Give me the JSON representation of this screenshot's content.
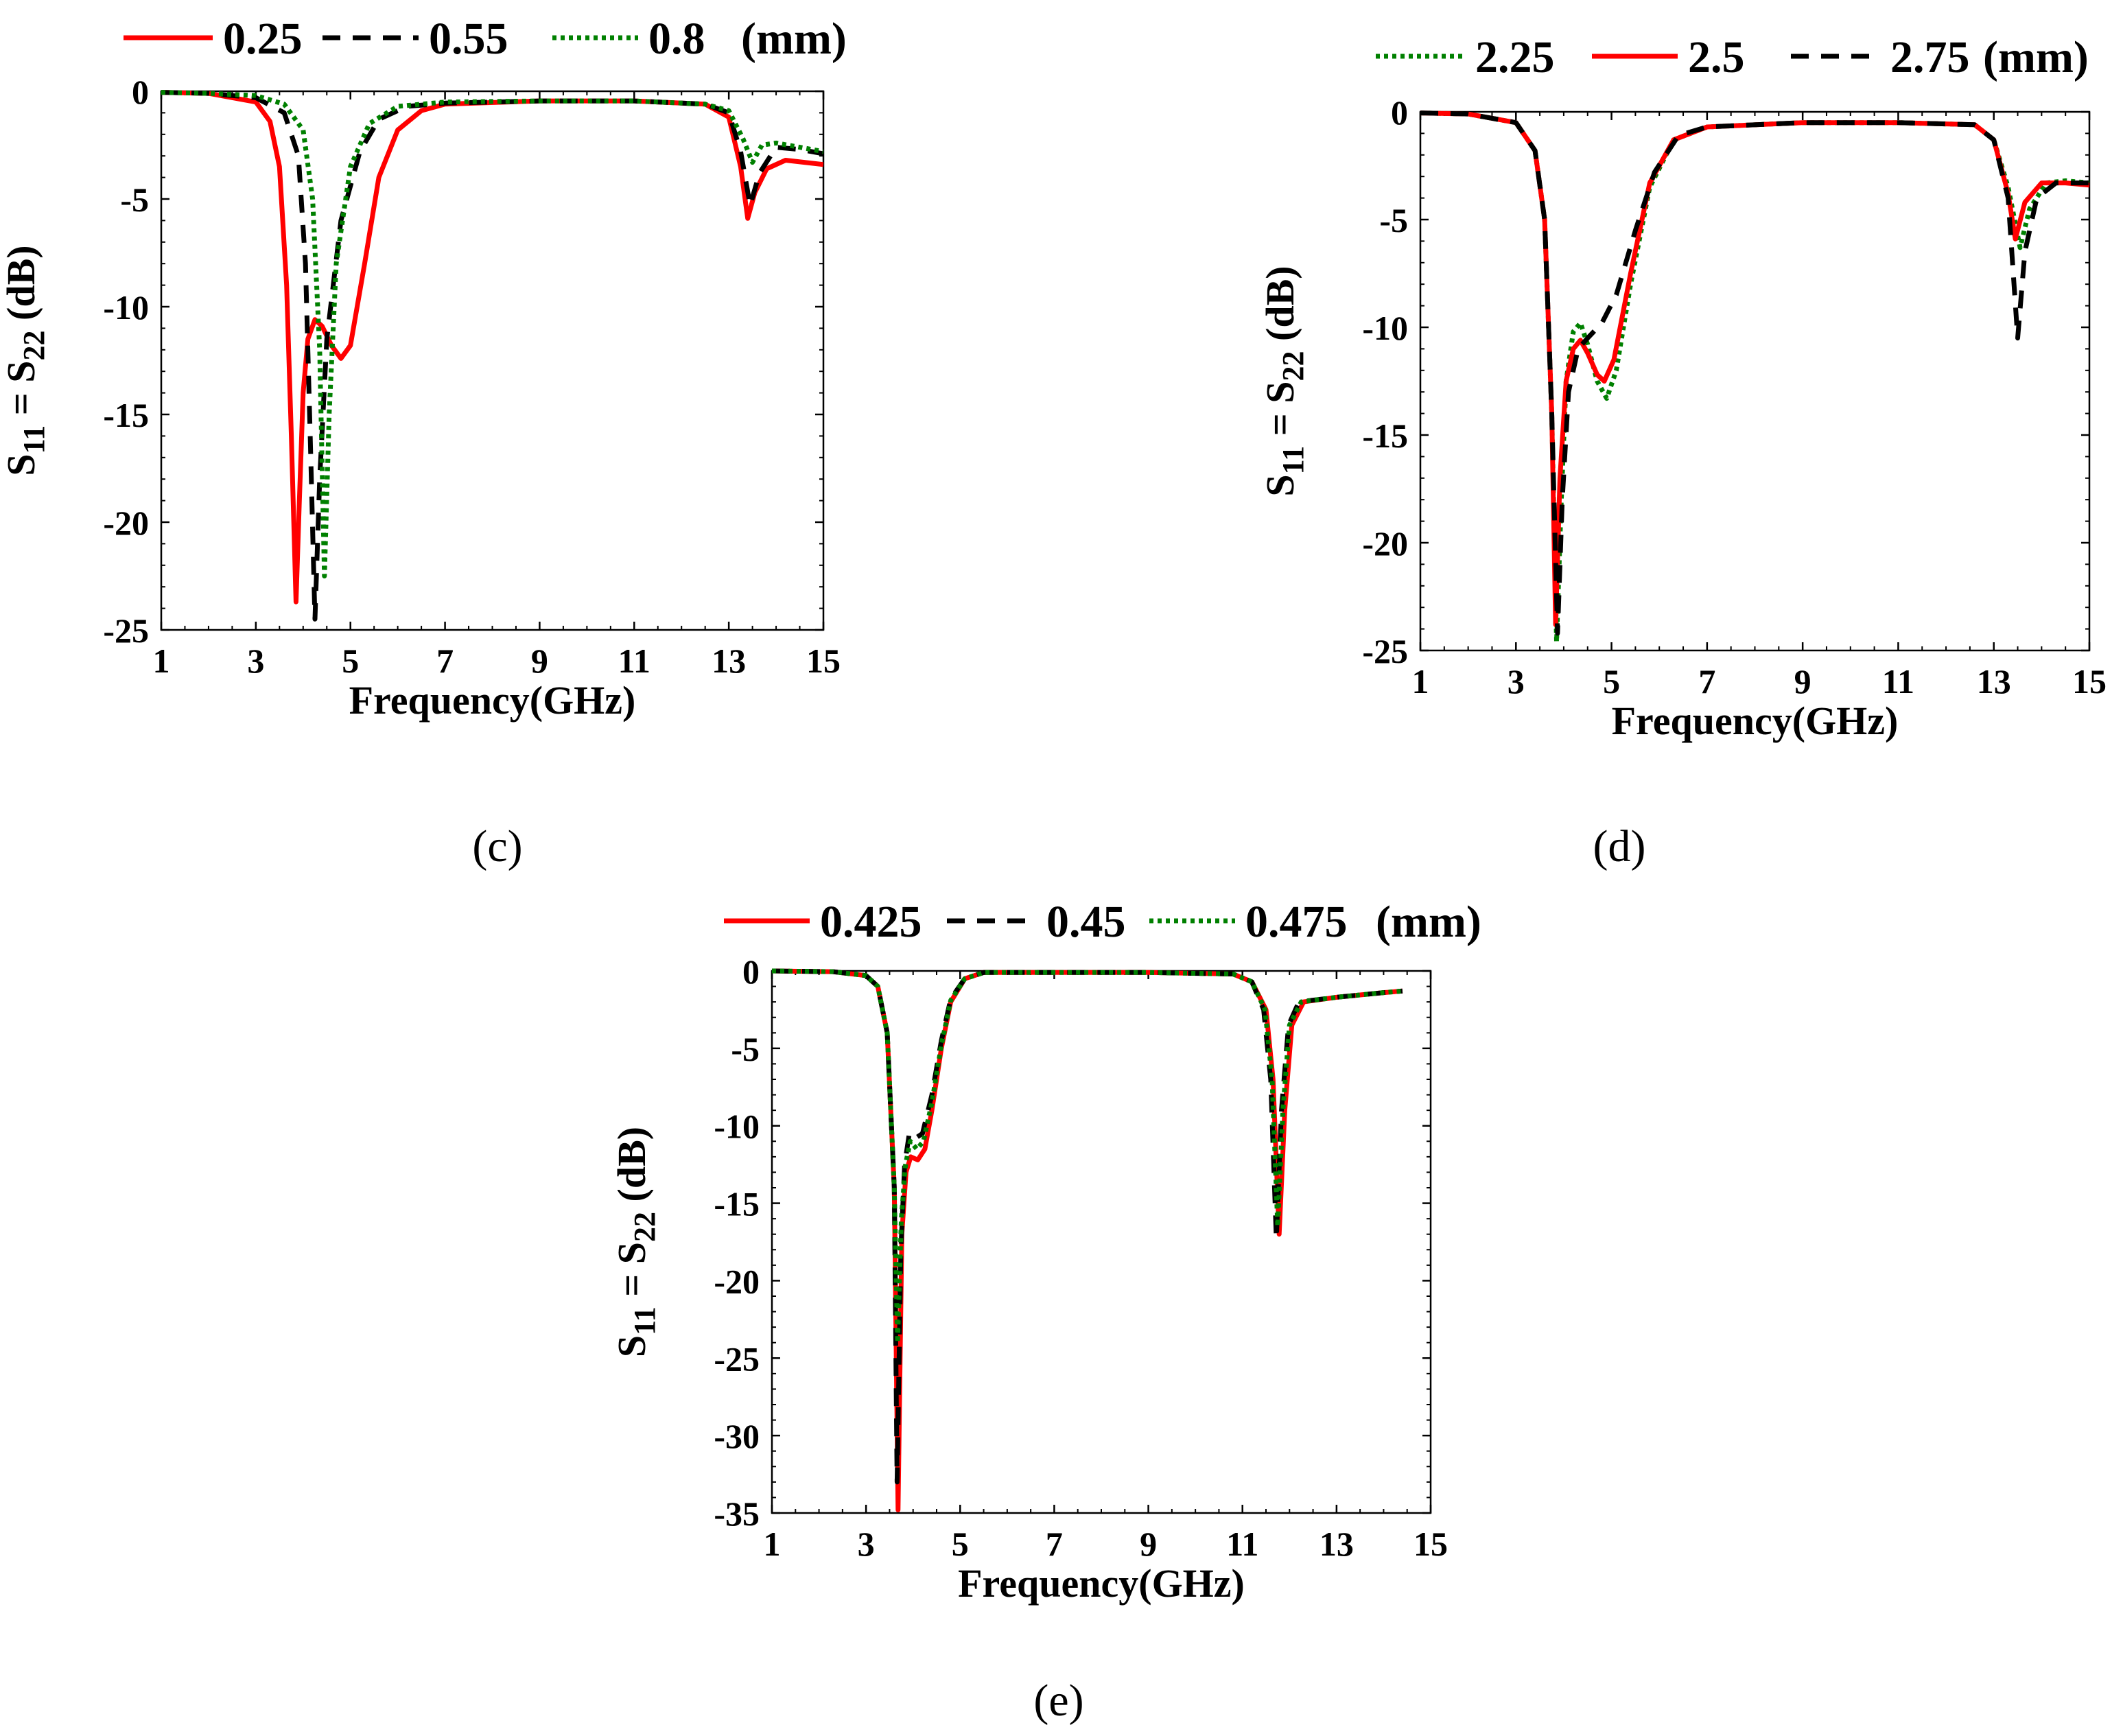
{
  "chart_data": [
    {
      "panel": "(c)",
      "type": "line",
      "xlabel": "Frequency(GHz)",
      "ylabel": {
        "prefix": "S",
        "sub1": "11",
        "mid": " = S",
        "sub2": "22",
        "suffix": " (dB)"
      },
      "xlim": [
        1,
        15
      ],
      "ylim": [
        -25,
        0
      ],
      "xticks": [
        1,
        3,
        5,
        7,
        9,
        11,
        13,
        15
      ],
      "yticks": [
        0,
        -5,
        -10,
        -15,
        -20,
        -25
      ],
      "legend_unit": "(mm)",
      "series": [
        {
          "name": "0.25",
          "color": "#ff0000",
          "style": "solid",
          "points": [
            [
              1,
              -0.05
            ],
            [
              2,
              -0.1
            ],
            [
              3,
              -0.5
            ],
            [
              3.3,
              -1.4
            ],
            [
              3.5,
              -3.5
            ],
            [
              3.65,
              -9
            ],
            [
              3.75,
              -16
            ],
            [
              3.85,
              -23.7
            ],
            [
              3.92,
              -19
            ],
            [
              4.0,
              -14
            ],
            [
              4.1,
              -11.5
            ],
            [
              4.25,
              -10.6
            ],
            [
              4.4,
              -10.9
            ],
            [
              4.6,
              -11.8
            ],
            [
              4.8,
              -12.4
            ],
            [
              5.0,
              -11.8
            ],
            [
              5.3,
              -8
            ],
            [
              5.6,
              -4
            ],
            [
              6.0,
              -1.8
            ],
            [
              6.5,
              -0.9
            ],
            [
              7,
              -0.6
            ],
            [
              9,
              -0.45
            ],
            [
              11,
              -0.45
            ],
            [
              12.5,
              -0.6
            ],
            [
              13.0,
              -1.2
            ],
            [
              13.25,
              -3.5
            ],
            [
              13.4,
              -5.9
            ],
            [
              13.55,
              -4.7
            ],
            [
              13.8,
              -3.6
            ],
            [
              14.2,
              -3.2
            ],
            [
              15,
              -3.4
            ]
          ]
        },
        {
          "name": "0.55",
          "color": "#000000",
          "style": "dashed",
          "points": [
            [
              1,
              -0.05
            ],
            [
              2,
              -0.1
            ],
            [
              3,
              -0.3
            ],
            [
              3.6,
              -1.0
            ],
            [
              3.9,
              -3
            ],
            [
              4.05,
              -8
            ],
            [
              4.15,
              -16
            ],
            [
              4.25,
              -24.5
            ],
            [
              4.35,
              -18
            ],
            [
              4.5,
              -11.5
            ],
            [
              4.8,
              -6
            ],
            [
              5.2,
              -2.8
            ],
            [
              5.6,
              -1.3
            ],
            [
              6.2,
              -0.7
            ],
            [
              7,
              -0.55
            ],
            [
              9,
              -0.45
            ],
            [
              11,
              -0.45
            ],
            [
              12.5,
              -0.6
            ],
            [
              13.0,
              -1.0
            ],
            [
              13.25,
              -2.8
            ],
            [
              13.45,
              -5.3
            ],
            [
              13.65,
              -3.8
            ],
            [
              14,
              -2.6
            ],
            [
              14.5,
              -2.7
            ],
            [
              15,
              -2.9
            ]
          ]
        },
        {
          "name": "0.8",
          "color": "#008000",
          "style": "dotted",
          "points": [
            [
              1,
              -0.05
            ],
            [
              2,
              -0.1
            ],
            [
              3,
              -0.2
            ],
            [
              3.6,
              -0.6
            ],
            [
              4.0,
              -1.8
            ],
            [
              4.2,
              -5
            ],
            [
              4.35,
              -12
            ],
            [
              4.45,
              -22.5
            ],
            [
              4.55,
              -15
            ],
            [
              4.7,
              -8
            ],
            [
              5.0,
              -3.5
            ],
            [
              5.4,
              -1.5
            ],
            [
              6.0,
              -0.7
            ],
            [
              7,
              -0.5
            ],
            [
              9,
              -0.45
            ],
            [
              11,
              -0.45
            ],
            [
              12.5,
              -0.6
            ],
            [
              13.0,
              -0.9
            ],
            [
              13.3,
              -2.2
            ],
            [
              13.5,
              -3.3
            ],
            [
              13.7,
              -2.5
            ],
            [
              14,
              -2.4
            ],
            [
              14.5,
              -2.6
            ],
            [
              15,
              -2.8
            ]
          ]
        }
      ]
    },
    {
      "panel": "(d)",
      "type": "line",
      "xlabel": "Frequency(GHz)",
      "ylabel": {
        "prefix": "S",
        "sub1": "11",
        "mid": " = S",
        "sub2": "22",
        "suffix": " (dB)"
      },
      "xlim": [
        1,
        15
      ],
      "ylim": [
        -25,
        0
      ],
      "xticks": [
        1,
        3,
        5,
        7,
        9,
        11,
        13,
        15
      ],
      "yticks": [
        0,
        -5,
        -10,
        -15,
        -20,
        -25
      ],
      "legend_unit": "(mm)",
      "series": [
        {
          "name": "2.25",
          "color": "#008000",
          "style": "dotted",
          "points": [
            [
              1,
              -0.05
            ],
            [
              2,
              -0.1
            ],
            [
              3,
              -0.5
            ],
            [
              3.4,
              -1.8
            ],
            [
              3.6,
              -5
            ],
            [
              3.75,
              -14
            ],
            [
              3.85,
              -24.6
            ],
            [
              3.95,
              -18
            ],
            [
              4.05,
              -12.5
            ],
            [
              4.2,
              -10.2
            ],
            [
              4.35,
              -9.8
            ],
            [
              4.5,
              -10.8
            ],
            [
              4.7,
              -12.5
            ],
            [
              4.9,
              -13.3
            ],
            [
              5.1,
              -12
            ],
            [
              5.4,
              -8
            ],
            [
              5.8,
              -3.5
            ],
            [
              6.3,
              -1.3
            ],
            [
              7,
              -0.7
            ],
            [
              9,
              -0.5
            ],
            [
              11,
              -0.5
            ],
            [
              12.6,
              -0.6
            ],
            [
              13.0,
              -1.3
            ],
            [
              13.3,
              -3.5
            ],
            [
              13.55,
              -6.3
            ],
            [
              13.75,
              -4.5
            ],
            [
              14.1,
              -3.3
            ],
            [
              14.5,
              -3.2
            ],
            [
              15,
              -3.3
            ]
          ]
        },
        {
          "name": "2.5",
          "color": "#ff0000",
          "style": "solid",
          "points": [
            [
              1,
              -0.05
            ],
            [
              2,
              -0.1
            ],
            [
              3,
              -0.5
            ],
            [
              3.4,
              -1.8
            ],
            [
              3.6,
              -5
            ],
            [
              3.75,
              -14
            ],
            [
              3.83,
              -23.8
            ],
            [
              3.92,
              -17
            ],
            [
              4.05,
              -12.5
            ],
            [
              4.2,
              -11
            ],
            [
              4.35,
              -10.6
            ],
            [
              4.5,
              -11.2
            ],
            [
              4.7,
              -12.2
            ],
            [
              4.85,
              -12.5
            ],
            [
              5.05,
              -11.5
            ],
            [
              5.4,
              -7.5
            ],
            [
              5.8,
              -3.3
            ],
            [
              6.3,
              -1.3
            ],
            [
              7,
              -0.7
            ],
            [
              9,
              -0.5
            ],
            [
              11,
              -0.5
            ],
            [
              12.6,
              -0.6
            ],
            [
              13.0,
              -1.3
            ],
            [
              13.3,
              -3.8
            ],
            [
              13.45,
              -5.9
            ],
            [
              13.65,
              -4.2
            ],
            [
              14,
              -3.3
            ],
            [
              14.5,
              -3.3
            ],
            [
              15,
              -3.4
            ]
          ]
        },
        {
          "name": "2.75",
          "color": "#000000",
          "style": "dashed",
          "points": [
            [
              1,
              -0.05
            ],
            [
              2,
              -0.1
            ],
            [
              3,
              -0.5
            ],
            [
              3.4,
              -1.8
            ],
            [
              3.6,
              -5
            ],
            [
              3.75,
              -14
            ],
            [
              3.87,
              -24.2
            ],
            [
              3.97,
              -18
            ],
            [
              4.1,
              -13
            ],
            [
              4.3,
              -11
            ],
            [
              4.5,
              -10.5
            ],
            [
              4.8,
              -9.8
            ],
            [
              5.1,
              -8.5
            ],
            [
              5.5,
              -5.5
            ],
            [
              5.9,
              -2.8
            ],
            [
              6.4,
              -1.1
            ],
            [
              7,
              -0.7
            ],
            [
              9,
              -0.5
            ],
            [
              11,
              -0.5
            ],
            [
              12.6,
              -0.6
            ],
            [
              13.0,
              -1.3
            ],
            [
              13.3,
              -4
            ],
            [
              13.5,
              -10.5
            ],
            [
              13.65,
              -6.5
            ],
            [
              13.9,
              -4
            ],
            [
              14.3,
              -3.3
            ],
            [
              15,
              -3.3
            ]
          ]
        }
      ]
    },
    {
      "panel": "(e)",
      "type": "line",
      "xlabel": "Frequency(GHz)",
      "ylabel": {
        "prefix": "S",
        "sub1": "11",
        "mid": " = S",
        "sub2": "22",
        "suffix": " (dB)"
      },
      "xlim": [
        1,
        15
      ],
      "ylim": [
        -35,
        0
      ],
      "xticks": [
        1,
        3,
        5,
        7,
        9,
        11,
        13,
        15
      ],
      "yticks": [
        0,
        -5,
        -10,
        -15,
        -20,
        -25,
        -30,
        -35
      ],
      "legend_unit": "(mm)",
      "series": [
        {
          "name": "0.425",
          "color": "#ff0000",
          "style": "solid",
          "points": [
            [
              1,
              0
            ],
            [
              2.3,
              -0.05
            ],
            [
              3.0,
              -0.3
            ],
            [
              3.25,
              -1
            ],
            [
              3.45,
              -4
            ],
            [
              3.6,
              -14
            ],
            [
              3.68,
              -34.8
            ],
            [
              3.76,
              -17
            ],
            [
              3.85,
              -13
            ],
            [
              3.95,
              -12
            ],
            [
              4.1,
              -12.2
            ],
            [
              4.25,
              -11.5
            ],
            [
              4.4,
              -9
            ],
            [
              4.6,
              -5
            ],
            [
              4.8,
              -2
            ],
            [
              5.1,
              -0.5
            ],
            [
              5.5,
              -0.1
            ],
            [
              9,
              -0.1
            ],
            [
              10.8,
              -0.2
            ],
            [
              11.2,
              -0.7
            ],
            [
              11.5,
              -2.5
            ],
            [
              11.65,
              -7
            ],
            [
              11.78,
              -17
            ],
            [
              11.9,
              -9
            ],
            [
              12.05,
              -3.5
            ],
            [
              12.3,
              -2
            ],
            [
              13,
              -1.7
            ],
            [
              14,
              -1.4
            ],
            [
              14.4,
              -1.3
            ]
          ]
        },
        {
          "name": "0.45",
          "color": "#000000",
          "style": "dashed",
          "points": [
            [
              1,
              0
            ],
            [
              2.3,
              -0.05
            ],
            [
              3.0,
              -0.3
            ],
            [
              3.25,
              -1
            ],
            [
              3.45,
              -4
            ],
            [
              3.6,
              -14
            ],
            [
              3.66,
              -33
            ],
            [
              3.74,
              -18
            ],
            [
              3.82,
              -12.5
            ],
            [
              3.92,
              -10.5
            ],
            [
              4.05,
              -10.8
            ],
            [
              4.2,
              -10.5
            ],
            [
              4.4,
              -8
            ],
            [
              4.6,
              -4.5
            ],
            [
              4.8,
              -1.8
            ],
            [
              5.1,
              -0.5
            ],
            [
              5.5,
              -0.1
            ],
            [
              9,
              -0.1
            ],
            [
              10.8,
              -0.2
            ],
            [
              11.2,
              -0.7
            ],
            [
              11.45,
              -2.5
            ],
            [
              11.6,
              -7
            ],
            [
              11.72,
              -17.3
            ],
            [
              11.83,
              -9
            ],
            [
              11.98,
              -3.5
            ],
            [
              12.2,
              -2
            ],
            [
              13,
              -1.7
            ],
            [
              14,
              -1.4
            ],
            [
              14.4,
              -1.3
            ]
          ]
        },
        {
          "name": "0.475",
          "color": "#008000",
          "style": "dotted",
          "points": [
            [
              1,
              0
            ],
            [
              2.3,
              -0.05
            ],
            [
              3.0,
              -0.3
            ],
            [
              3.25,
              -1
            ],
            [
              3.45,
              -4
            ],
            [
              3.6,
              -14
            ],
            [
              3.67,
              -24
            ],
            [
              3.75,
              -16
            ],
            [
              3.84,
              -12.5
            ],
            [
              3.94,
              -11
            ],
            [
              4.08,
              -11.5
            ],
            [
              4.22,
              -11
            ],
            [
              4.4,
              -8.5
            ],
            [
              4.6,
              -4.8
            ],
            [
              4.8,
              -1.9
            ],
            [
              5.1,
              -0.5
            ],
            [
              5.5,
              -0.1
            ],
            [
              9,
              -0.1
            ],
            [
              10.8,
              -0.2
            ],
            [
              11.2,
              -0.7
            ],
            [
              11.48,
              -2.5
            ],
            [
              11.63,
              -7
            ],
            [
              11.75,
              -16.5
            ],
            [
              11.86,
              -9
            ],
            [
              12.0,
              -3.5
            ],
            [
              12.25,
              -2
            ],
            [
              13,
              -1.7
            ],
            [
              14,
              -1.4
            ],
            [
              14.4,
              -1.3
            ]
          ]
        }
      ]
    }
  ]
}
